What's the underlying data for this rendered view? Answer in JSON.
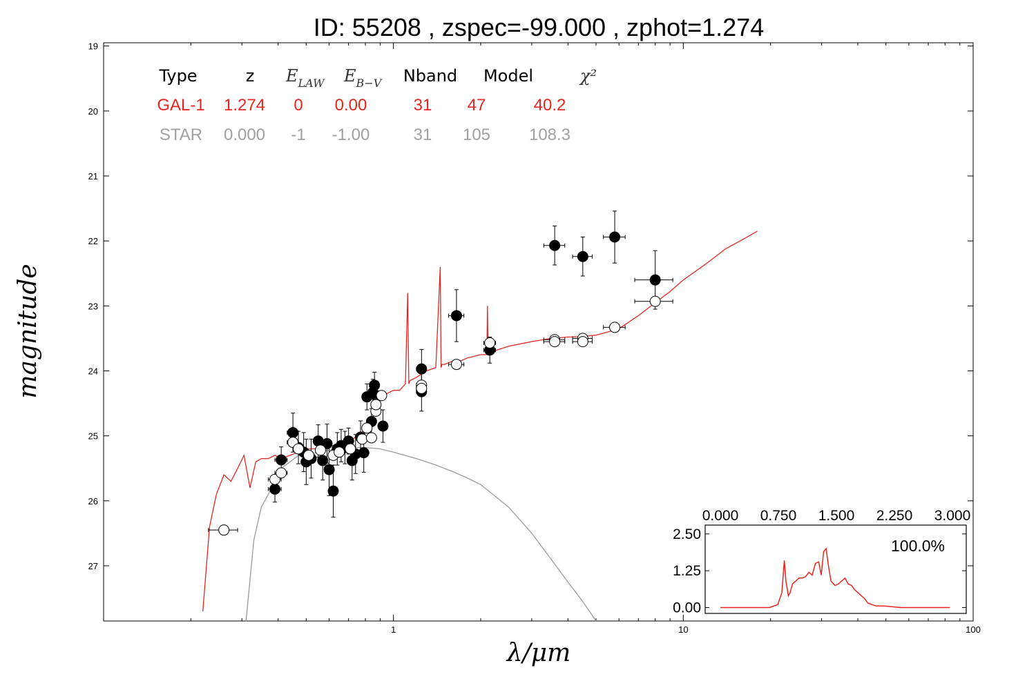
{
  "chart_data": [
    {
      "type": "scatter",
      "title": "ID:  55208 , zspec=-99.000 , zphot=1.274",
      "xlabel": "λ/μm",
      "ylabel": "magnitude",
      "xscale": "log",
      "xlim": [
        0.1,
        100
      ],
      "ylim": [
        27.85,
        18.95
      ],
      "y_inverted": true,
      "x_tick_labels": [
        "1",
        "10",
        "100"
      ],
      "y_tick_labels": [
        "19",
        "20",
        "21",
        "22",
        "23",
        "24",
        "25",
        "26",
        "27"
      ],
      "grid": false,
      "fit_table": {
        "headers": [
          "Type",
          "z",
          "E_LAW",
          "E_B−V",
          "Nband",
          "Model",
          "χ²"
        ],
        "rows": [
          {
            "color": "#e8251f",
            "values": [
              "GAL-1",
              "1.274",
              "0",
              "0.00",
              "31",
              "47",
              "40.2"
            ]
          },
          {
            "color": "#a0a0a0",
            "values": [
              "STAR",
              "0.000",
              "-1",
              "-1.00",
              "31",
              "105",
              "108.3"
            ]
          }
        ]
      },
      "series": [
        {
          "marker": "filled-circle",
          "color": "#000000",
          "points": [
            {
              "x": 0.39,
              "y": 25.82,
              "xerr": 0.02,
              "yerr": 0.2
            },
            {
              "x": 0.41,
              "y": 25.37,
              "xerr": 0.02,
              "yerr": 0.2
            },
            {
              "x": 0.45,
              "y": 24.95,
              "xerr": 0.02,
              "yerr": 0.3
            },
            {
              "x": 0.47,
              "y": 25.18,
              "xerr": 0.02,
              "yerr": 0.25
            },
            {
              "x": 0.49,
              "y": 25.25,
              "xerr": 0.02,
              "yerr": 0.3
            },
            {
              "x": 0.5,
              "y": 25.4,
              "xerr": 0.02,
              "yerr": 0.35
            },
            {
              "x": 0.52,
              "y": 25.35,
              "xerr": 0.02,
              "yerr": 0.3
            },
            {
              "x": 0.55,
              "y": 25.08,
              "xerr": 0.02,
              "yerr": 0.25
            },
            {
              "x": 0.57,
              "y": 25.38,
              "xerr": 0.02,
              "yerr": 0.3
            },
            {
              "x": 0.59,
              "y": 25.12,
              "xerr": 0.02,
              "yerr": 0.3
            },
            {
              "x": 0.6,
              "y": 25.52,
              "xerr": 0.02,
              "yerr": 0.4
            },
            {
              "x": 0.62,
              "y": 25.85,
              "xerr": 0.02,
              "yerr": 0.4
            },
            {
              "x": 0.64,
              "y": 25.2,
              "xerr": 0.02,
              "yerr": 0.25
            },
            {
              "x": 0.66,
              "y": 25.15,
              "xerr": 0.02,
              "yerr": 0.25
            },
            {
              "x": 0.68,
              "y": 25.18,
              "xerr": 0.02,
              "yerr": 0.25
            },
            {
              "x": 0.7,
              "y": 25.08,
              "xerr": 0.02,
              "yerr": 0.2
            },
            {
              "x": 0.72,
              "y": 25.38,
              "xerr": 0.02,
              "yerr": 0.3
            },
            {
              "x": 0.74,
              "y": 25.28,
              "xerr": 0.02,
              "yerr": 0.3
            },
            {
              "x": 0.77,
              "y": 25.02,
              "xerr": 0.02,
              "yerr": 0.25
            },
            {
              "x": 0.79,
              "y": 25.26,
              "xerr": 0.02,
              "yerr": 0.3
            },
            {
              "x": 0.81,
              "y": 24.4,
              "xerr": 0.03,
              "yerr": 0.2
            },
            {
              "x": 0.84,
              "y": 24.78,
              "xerr": 0.03,
              "yerr": 0.2
            },
            {
              "x": 0.85,
              "y": 24.33,
              "xerr": 0.03,
              "yerr": 0.2
            },
            {
              "x": 0.86,
              "y": 24.22,
              "xerr": 0.03,
              "yerr": 0.2
            },
            {
              "x": 0.87,
              "y": 24.38,
              "xerr": 0.03,
              "yerr": 0.2
            },
            {
              "x": 0.92,
              "y": 24.85,
              "xerr": 0.03,
              "yerr": 0.25
            },
            {
              "x": 1.25,
              "y": 23.97,
              "xerr": 0.05,
              "yerr": 0.3
            },
            {
              "x": 1.25,
              "y": 24.32,
              "xerr": 0.05,
              "yerr": 0.3
            },
            {
              "x": 1.65,
              "y": 23.15,
              "xerr": 0.1,
              "yerr": 0.4
            },
            {
              "x": 2.15,
              "y": 23.68,
              "xerr": 0.1,
              "yerr": 0.2
            },
            {
              "x": 3.6,
              "y": 22.07,
              "xerr": 0.3,
              "yerr": 0.3
            },
            {
              "x": 4.5,
              "y": 22.24,
              "xerr": 0.35,
              "yerr": 0.3
            },
            {
              "x": 5.8,
              "y": 21.94,
              "xerr": 0.5,
              "yerr": 0.4
            },
            {
              "x": 8.0,
              "y": 22.6,
              "xerr": 1.2,
              "yerr": 0.45
            }
          ]
        },
        {
          "marker": "open-circle",
          "color": "#000000",
          "points": [
            {
              "x": 0.26,
              "y": 26.45,
              "xerr": 0.03
            },
            {
              "x": 0.39,
              "y": 25.67,
              "xerr": 0.02
            },
            {
              "x": 0.41,
              "y": 25.57,
              "xerr": 0.02
            },
            {
              "x": 0.45,
              "y": 25.1,
              "xerr": 0.02
            },
            {
              "x": 0.47,
              "y": 25.2,
              "xerr": 0.02
            },
            {
              "x": 0.51,
              "y": 25.3,
              "xerr": 0.02
            },
            {
              "x": 0.56,
              "y": 25.22,
              "xerr": 0.02
            },
            {
              "x": 0.62,
              "y": 25.3,
              "xerr": 0.02
            },
            {
              "x": 0.65,
              "y": 25.25,
              "xerr": 0.02
            },
            {
              "x": 0.71,
              "y": 25.2,
              "xerr": 0.02
            },
            {
              "x": 0.78,
              "y": 25.05,
              "xerr": 0.02
            },
            {
              "x": 0.81,
              "y": 24.88,
              "xerr": 0.03
            },
            {
              "x": 0.84,
              "y": 25.03,
              "xerr": 0.03
            },
            {
              "x": 0.87,
              "y": 24.62,
              "xerr": 0.03
            },
            {
              "x": 0.87,
              "y": 24.52,
              "xerr": 0.03
            },
            {
              "x": 0.91,
              "y": 24.38,
              "xerr": 0.03
            },
            {
              "x": 1.25,
              "y": 24.22,
              "xerr": 0.05
            },
            {
              "x": 1.25,
              "y": 24.27,
              "xerr": 0.05
            },
            {
              "x": 1.65,
              "y": 23.9,
              "xerr": 0.1
            },
            {
              "x": 2.15,
              "y": 23.57,
              "xerr": 0.1
            },
            {
              "x": 3.6,
              "y": 23.52,
              "xerr": 0.3
            },
            {
              "x": 3.6,
              "y": 23.55,
              "xerr": 0.3
            },
            {
              "x": 4.5,
              "y": 23.5,
              "xerr": 0.35
            },
            {
              "x": 4.5,
              "y": 23.55,
              "xerr": 0.35
            },
            {
              "x": 5.8,
              "y": 23.33,
              "xerr": 0.5
            },
            {
              "x": 8.0,
              "y": 22.93,
              "xerr": 1.2
            }
          ]
        },
        {
          "type": "line",
          "color": "#e8251f",
          "x": [
            0.22,
            0.232,
            0.245,
            0.26,
            0.275,
            0.29,
            0.305,
            0.32,
            0.335,
            0.35,
            0.37,
            0.39,
            0.41,
            0.44,
            0.47,
            0.5,
            0.55,
            0.6,
            0.65,
            0.7,
            0.75,
            0.8,
            0.85,
            0.9,
            0.95,
            1.0,
            1.05,
            1.1,
            1.12,
            1.13,
            1.14,
            1.2,
            1.3,
            1.4,
            1.45,
            1.46,
            1.47,
            1.5,
            1.6,
            1.7,
            1.8,
            2.0,
            2.1,
            2.11,
            2.12,
            2.2,
            2.5,
            3.0,
            3.5,
            4.0,
            4.5,
            5.0,
            5.5,
            6.0,
            7.0,
            8.0,
            9.0,
            10.0,
            12.0,
            14.0,
            16.0,
            18.0
          ],
          "y": [
            27.7,
            26.4,
            25.9,
            25.6,
            25.7,
            25.5,
            25.3,
            25.8,
            25.4,
            25.35,
            25.35,
            25.3,
            25.35,
            25.3,
            25.25,
            25.2,
            25.2,
            25.15,
            25.15,
            25.1,
            25.0,
            24.9,
            24.7,
            24.45,
            24.35,
            24.3,
            24.3,
            24.2,
            22.8,
            24.2,
            24.15,
            24.1,
            24.0,
            23.95,
            22.4,
            23.95,
            23.9,
            23.9,
            23.85,
            23.85,
            23.8,
            23.75,
            23.75,
            23.0,
            23.7,
            23.7,
            23.62,
            23.55,
            23.5,
            23.48,
            23.47,
            23.45,
            23.4,
            23.35,
            23.15,
            22.95,
            22.78,
            22.6,
            22.35,
            22.12,
            21.98,
            21.85
          ]
        },
        {
          "type": "line",
          "color": "#9a9a9a",
          "x": [
            0.31,
            0.33,
            0.35,
            0.37,
            0.39,
            0.41,
            0.44,
            0.47,
            0.5,
            0.55,
            0.6,
            0.65,
            0.7,
            0.8,
            0.9,
            1.0,
            1.2,
            1.4,
            1.6,
            1.8,
            2.0,
            2.5,
            3.0,
            3.5,
            4.0,
            4.5,
            5.0
          ],
          "y": [
            27.85,
            26.6,
            26.1,
            25.9,
            25.7,
            25.5,
            25.4,
            25.3,
            25.3,
            25.25,
            25.22,
            25.2,
            25.18,
            25.18,
            25.2,
            25.25,
            25.35,
            25.45,
            25.55,
            25.65,
            25.75,
            26.1,
            26.5,
            26.9,
            27.25,
            27.55,
            27.85
          ]
        }
      ]
    },
    {
      "type": "line",
      "title": "",
      "percent_label": "100.0%",
      "xlim": [
        0.0,
        3.0
      ],
      "ylim": [
        -0.2,
        2.8
      ],
      "x_tick_labels": [
        "0.000",
        "0.750",
        "1.500",
        "2.250",
        "3.000"
      ],
      "y_tick_labels": [
        "0.00",
        "1.25",
        "2.50"
      ],
      "color": "#e8251f",
      "x": [
        0.0,
        0.6,
        0.7,
        0.75,
        0.78,
        0.8,
        0.83,
        0.85,
        0.88,
        0.92,
        0.96,
        1.0,
        1.04,
        1.08,
        1.12,
        1.16,
        1.2,
        1.23,
        1.26,
        1.29,
        1.32,
        1.35,
        1.38,
        1.4,
        1.44,
        1.48,
        1.52,
        1.56,
        1.6,
        1.64,
        1.68,
        1.72,
        1.76,
        1.8,
        1.85,
        1.9,
        2.0,
        2.2,
        2.4,
        2.8
      ],
      "y": [
        0.0,
        0.0,
        0.1,
        0.5,
        1.6,
        0.9,
        0.4,
        0.5,
        0.8,
        0.9,
        1.0,
        1.0,
        1.05,
        1.2,
        1.1,
        1.5,
        1.55,
        1.1,
        1.9,
        2.0,
        1.4,
        0.9,
        0.8,
        0.75,
        0.8,
        0.9,
        1.0,
        0.8,
        0.75,
        0.6,
        0.5,
        0.4,
        0.3,
        0.15,
        0.1,
        0.05,
        0.05,
        0.0,
        0.0,
        0.0
      ]
    }
  ]
}
